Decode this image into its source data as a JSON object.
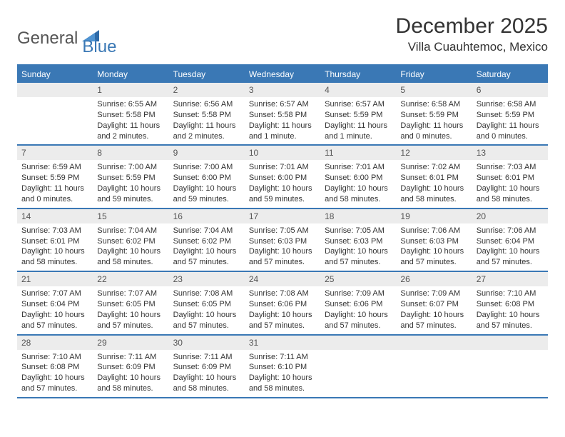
{
  "logo": {
    "text1": "General",
    "text2": "Blue"
  },
  "title": "December 2025",
  "location": "Villa Cuauhtemoc, Mexico",
  "colors": {
    "header_bg": "#3a78b5",
    "header_fg": "#ffffff",
    "daynum_bg": "#ececec",
    "border": "#3a78b5",
    "text": "#333333",
    "logo_gray": "#555555",
    "logo_blue": "#3a78b5",
    "page_bg": "#ffffff"
  },
  "weekdays": [
    "Sunday",
    "Monday",
    "Tuesday",
    "Wednesday",
    "Thursday",
    "Friday",
    "Saturday"
  ],
  "weeks": [
    [
      {
        "n": "",
        "sr": "",
        "ss": "",
        "dl": ""
      },
      {
        "n": "1",
        "sr": "Sunrise: 6:55 AM",
        "ss": "Sunset: 5:58 PM",
        "dl": "Daylight: 11 hours and 2 minutes."
      },
      {
        "n": "2",
        "sr": "Sunrise: 6:56 AM",
        "ss": "Sunset: 5:58 PM",
        "dl": "Daylight: 11 hours and 2 minutes."
      },
      {
        "n": "3",
        "sr": "Sunrise: 6:57 AM",
        "ss": "Sunset: 5:58 PM",
        "dl": "Daylight: 11 hours and 1 minute."
      },
      {
        "n": "4",
        "sr": "Sunrise: 6:57 AM",
        "ss": "Sunset: 5:59 PM",
        "dl": "Daylight: 11 hours and 1 minute."
      },
      {
        "n": "5",
        "sr": "Sunrise: 6:58 AM",
        "ss": "Sunset: 5:59 PM",
        "dl": "Daylight: 11 hours and 0 minutes."
      },
      {
        "n": "6",
        "sr": "Sunrise: 6:58 AM",
        "ss": "Sunset: 5:59 PM",
        "dl": "Daylight: 11 hours and 0 minutes."
      }
    ],
    [
      {
        "n": "7",
        "sr": "Sunrise: 6:59 AM",
        "ss": "Sunset: 5:59 PM",
        "dl": "Daylight: 11 hours and 0 minutes."
      },
      {
        "n": "8",
        "sr": "Sunrise: 7:00 AM",
        "ss": "Sunset: 5:59 PM",
        "dl": "Daylight: 10 hours and 59 minutes."
      },
      {
        "n": "9",
        "sr": "Sunrise: 7:00 AM",
        "ss": "Sunset: 6:00 PM",
        "dl": "Daylight: 10 hours and 59 minutes."
      },
      {
        "n": "10",
        "sr": "Sunrise: 7:01 AM",
        "ss": "Sunset: 6:00 PM",
        "dl": "Daylight: 10 hours and 59 minutes."
      },
      {
        "n": "11",
        "sr": "Sunrise: 7:01 AM",
        "ss": "Sunset: 6:00 PM",
        "dl": "Daylight: 10 hours and 58 minutes."
      },
      {
        "n": "12",
        "sr": "Sunrise: 7:02 AM",
        "ss": "Sunset: 6:01 PM",
        "dl": "Daylight: 10 hours and 58 minutes."
      },
      {
        "n": "13",
        "sr": "Sunrise: 7:03 AM",
        "ss": "Sunset: 6:01 PM",
        "dl": "Daylight: 10 hours and 58 minutes."
      }
    ],
    [
      {
        "n": "14",
        "sr": "Sunrise: 7:03 AM",
        "ss": "Sunset: 6:01 PM",
        "dl": "Daylight: 10 hours and 58 minutes."
      },
      {
        "n": "15",
        "sr": "Sunrise: 7:04 AM",
        "ss": "Sunset: 6:02 PM",
        "dl": "Daylight: 10 hours and 58 minutes."
      },
      {
        "n": "16",
        "sr": "Sunrise: 7:04 AM",
        "ss": "Sunset: 6:02 PM",
        "dl": "Daylight: 10 hours and 57 minutes."
      },
      {
        "n": "17",
        "sr": "Sunrise: 7:05 AM",
        "ss": "Sunset: 6:03 PM",
        "dl": "Daylight: 10 hours and 57 minutes."
      },
      {
        "n": "18",
        "sr": "Sunrise: 7:05 AM",
        "ss": "Sunset: 6:03 PM",
        "dl": "Daylight: 10 hours and 57 minutes."
      },
      {
        "n": "19",
        "sr": "Sunrise: 7:06 AM",
        "ss": "Sunset: 6:03 PM",
        "dl": "Daylight: 10 hours and 57 minutes."
      },
      {
        "n": "20",
        "sr": "Sunrise: 7:06 AM",
        "ss": "Sunset: 6:04 PM",
        "dl": "Daylight: 10 hours and 57 minutes."
      }
    ],
    [
      {
        "n": "21",
        "sr": "Sunrise: 7:07 AM",
        "ss": "Sunset: 6:04 PM",
        "dl": "Daylight: 10 hours and 57 minutes."
      },
      {
        "n": "22",
        "sr": "Sunrise: 7:07 AM",
        "ss": "Sunset: 6:05 PM",
        "dl": "Daylight: 10 hours and 57 minutes."
      },
      {
        "n": "23",
        "sr": "Sunrise: 7:08 AM",
        "ss": "Sunset: 6:05 PM",
        "dl": "Daylight: 10 hours and 57 minutes."
      },
      {
        "n": "24",
        "sr": "Sunrise: 7:08 AM",
        "ss": "Sunset: 6:06 PM",
        "dl": "Daylight: 10 hours and 57 minutes."
      },
      {
        "n": "25",
        "sr": "Sunrise: 7:09 AM",
        "ss": "Sunset: 6:06 PM",
        "dl": "Daylight: 10 hours and 57 minutes."
      },
      {
        "n": "26",
        "sr": "Sunrise: 7:09 AM",
        "ss": "Sunset: 6:07 PM",
        "dl": "Daylight: 10 hours and 57 minutes."
      },
      {
        "n": "27",
        "sr": "Sunrise: 7:10 AM",
        "ss": "Sunset: 6:08 PM",
        "dl": "Daylight: 10 hours and 57 minutes."
      }
    ],
    [
      {
        "n": "28",
        "sr": "Sunrise: 7:10 AM",
        "ss": "Sunset: 6:08 PM",
        "dl": "Daylight: 10 hours and 57 minutes."
      },
      {
        "n": "29",
        "sr": "Sunrise: 7:11 AM",
        "ss": "Sunset: 6:09 PM",
        "dl": "Daylight: 10 hours and 58 minutes."
      },
      {
        "n": "30",
        "sr": "Sunrise: 7:11 AM",
        "ss": "Sunset: 6:09 PM",
        "dl": "Daylight: 10 hours and 58 minutes."
      },
      {
        "n": "31",
        "sr": "Sunrise: 7:11 AM",
        "ss": "Sunset: 6:10 PM",
        "dl": "Daylight: 10 hours and 58 minutes."
      },
      {
        "n": "",
        "sr": "",
        "ss": "",
        "dl": ""
      },
      {
        "n": "",
        "sr": "",
        "ss": "",
        "dl": ""
      },
      {
        "n": "",
        "sr": "",
        "ss": "",
        "dl": ""
      }
    ]
  ]
}
